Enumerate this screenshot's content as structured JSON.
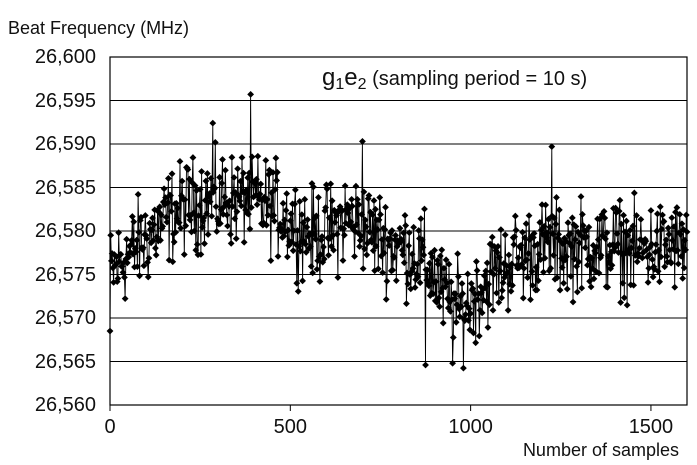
{
  "chart_data": {
    "type": "line",
    "title": "",
    "ylabel": "Beat Frequency (MHz)",
    "xlabel": "Number of samples",
    "annotation": {
      "g": "g",
      "g_sub": "1",
      "e": "e",
      "e_sub": "2",
      "rest": " (sampling period = 10 s)"
    },
    "xlim": [
      0,
      1600
    ],
    "ylim": [
      26560,
      26600
    ],
    "x_ticks": [
      0,
      500,
      1000,
      1500
    ],
    "x_tick_labels": [
      "0",
      "500",
      "1000",
      "1500"
    ],
    "y_ticks": [
      26560,
      26565,
      26570,
      26575,
      26580,
      26585,
      26590,
      26595,
      26600
    ],
    "y_tick_labels": [
      "26,560",
      "26,565",
      "26,570",
      "26,575",
      "26,580",
      "26,585",
      "26,590",
      "26,595",
      "26,600"
    ],
    "grid": "horizontal",
    "marker": "diamond",
    "series": [
      {
        "sample_step": 20,
        "x": [
          0,
          20,
          40,
          60,
          80,
          100,
          120,
          140,
          160,
          180,
          200,
          220,
          240,
          260,
          280,
          300,
          320,
          340,
          360,
          380,
          400,
          420,
          440,
          460,
          480,
          500,
          520,
          540,
          560,
          580,
          600,
          620,
          640,
          660,
          680,
          700,
          720,
          740,
          760,
          780,
          800,
          820,
          840,
          860,
          880,
          900,
          920,
          940,
          960,
          980,
          1000,
          1020,
          1040,
          1060,
          1080,
          1100,
          1120,
          1140,
          1160,
          1180,
          1200,
          1220,
          1240,
          1260,
          1280,
          1300,
          1320,
          1340,
          1360,
          1380,
          1400,
          1420,
          1440,
          1460,
          1480,
          1500,
          1520,
          1540,
          1560,
          1580,
          1600
        ],
        "values": [
          26575.0,
          26576.0,
          26577.0,
          26577.5,
          26578.5,
          26579.0,
          26580.0,
          26580.5,
          26581.5,
          26582.0,
          26582.5,
          26583.0,
          26583.0,
          26583.5,
          26583.5,
          26583.0,
          26584.0,
          26583.5,
          26583.5,
          26584.0,
          26583.5,
          26583.0,
          26583.0,
          26582.5,
          26582.0,
          26581.0,
          26580.5,
          26580.0,
          26579.5,
          26579.5,
          26580.0,
          26580.0,
          26581.0,
          26581.5,
          26581.0,
          26580.5,
          26580.0,
          26579.5,
          26579.0,
          26578.5,
          26578.0,
          26578.0,
          26577.5,
          26577.0,
          26576.0,
          26575.0,
          26573.0,
          26572.0,
          26571.0,
          26571.0,
          26572.0,
          26573.0,
          26574.0,
          26575.0,
          26575.5,
          26576.0,
          26577.0,
          26577.0,
          26577.5,
          26578.0,
          26578.0,
          26578.5,
          26578.0,
          26578.0,
          26578.0,
          26578.5,
          26578.0,
          26578.5,
          26578.0,
          26578.0,
          26578.5,
          26578.0,
          26578.0,
          26577.5,
          26578.0,
          26578.0,
          26578.0,
          26578.0,
          26578.5,
          26578.0,
          26578.5
        ]
      }
    ],
    "notable_points": [
      {
        "x": 390,
        "y": 26595.7
      },
      {
        "x": 285,
        "y": 26592.4
      },
      {
        "x": 700,
        "y": 26590.3
      },
      {
        "x": 1225,
        "y": 26589.7
      },
      {
        "x": 0,
        "y": 26568.5
      },
      {
        "x": 875,
        "y": 26564.6
      },
      {
        "x": 950,
        "y": 26564.8
      }
    ]
  }
}
